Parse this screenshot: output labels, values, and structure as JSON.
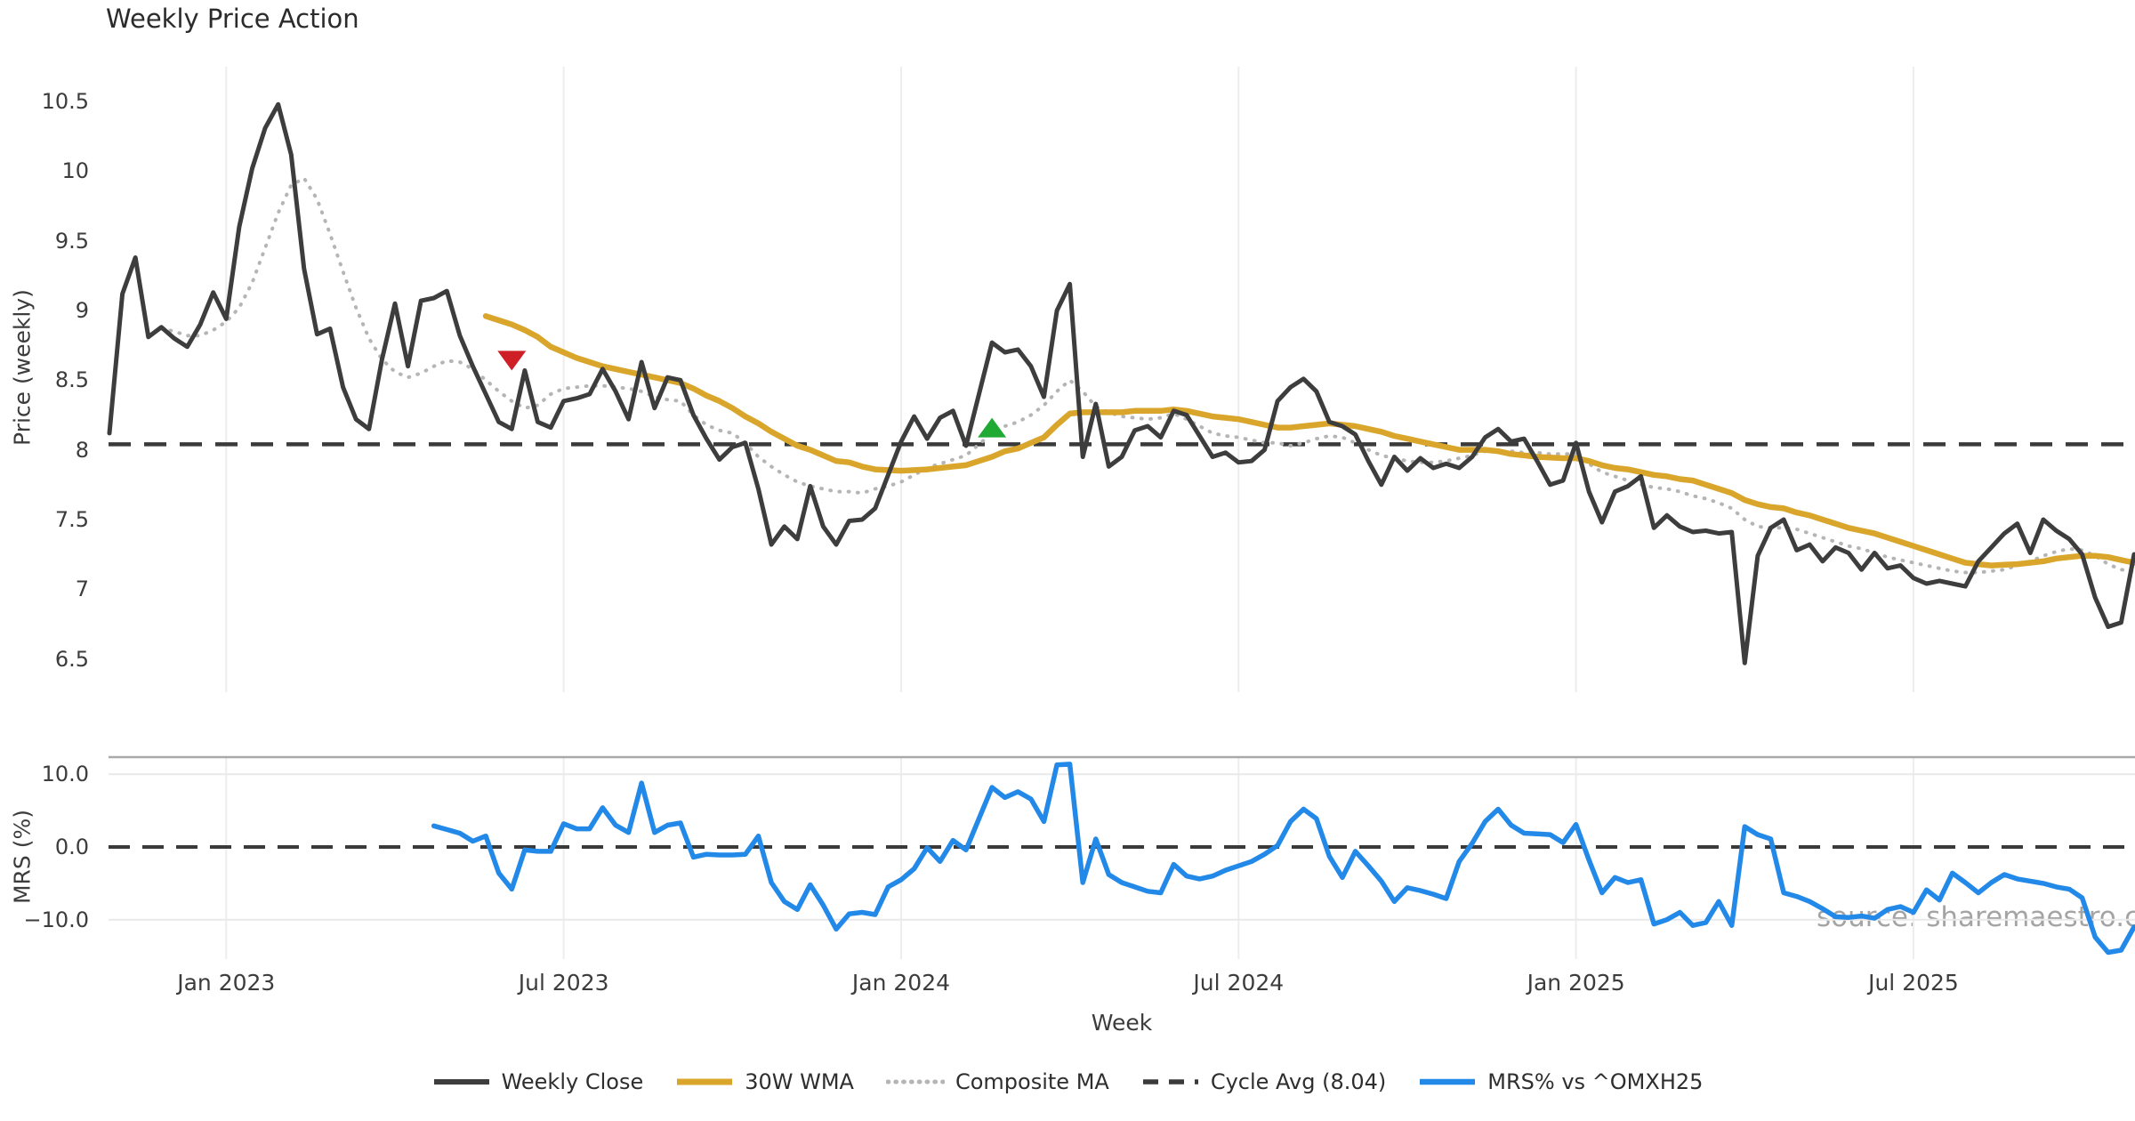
{
  "title": "Weekly Price Action",
  "watermark": "source: sharemaestro.com",
  "xlabel": "Week",
  "colors": {
    "close": "#3d3d3d",
    "wma": "#d9a62b",
    "composite": "#b5b5b5",
    "cycle": "#3a3a3a",
    "mrs": "#2389e8",
    "sell": "#cf1f26",
    "buy": "#1faa34",
    "grid": "#ededed",
    "hgrid": "#e9e9e9",
    "spine": "#a9a9a9",
    "text": "#3c3c3c",
    "title_text": "#2b2b2b",
    "watermark_text": "#9b9b9b"
  },
  "chart_data": {
    "type": "line",
    "x_unit": "week",
    "total_weeks": 157,
    "panels": [
      {
        "name": "price",
        "ylabel": "Price (weekly)",
        "ylim": [
          6.26,
          10.75
        ],
        "grid": "vertical-only",
        "yticks": [
          {
            "label": "10.5",
            "value": 10.5
          },
          {
            "label": "10",
            "value": 10
          },
          {
            "label": "9.5",
            "value": 9.5
          },
          {
            "label": "9",
            "value": 9
          },
          {
            "label": "8.5",
            "value": 8.5
          },
          {
            "label": "8",
            "value": 8
          },
          {
            "label": "7.5",
            "value": 7.5
          },
          {
            "label": "7",
            "value": 7
          },
          {
            "label": "6.5",
            "value": 6.5
          }
        ],
        "cycle_avg": 8.04
      },
      {
        "name": "mrs",
        "ylabel": "MRS (%)",
        "ylim": [
          -15.5,
          12.4
        ],
        "grid": "horizontal-and-vertical",
        "yticks": [
          {
            "label": "10.0",
            "value": 10
          },
          {
            "label": "0.0",
            "value": 0
          },
          {
            "label": "−10.0",
            "value": -10
          }
        ],
        "zero_line": 0
      }
    ],
    "xticks": [
      {
        "label": "Jan 2023",
        "week": 9
      },
      {
        "label": "Jul 2023",
        "week": 35
      },
      {
        "label": "Jan 2024",
        "week": 61
      },
      {
        "label": "Jul 2024",
        "week": 87
      },
      {
        "label": "Jan 2025",
        "week": 113
      },
      {
        "label": "Jul 2025",
        "week": 139
      }
    ],
    "series": [
      {
        "name": "Weekly Close",
        "panel": "price",
        "style": "solid",
        "width": 5,
        "color_key": "close",
        "start_week": 0,
        "values": [
          8.12,
          9.12,
          9.38,
          8.81,
          8.88,
          8.8,
          8.74,
          8.9,
          9.13,
          8.94,
          9.6,
          10.02,
          10.31,
          10.48,
          10.12,
          9.3,
          8.83,
          8.87,
          8.45,
          8.22,
          8.15,
          8.65,
          9.05,
          8.6,
          9.07,
          9.09,
          9.14,
          8.82,
          8.6,
          8.4,
          8.2,
          8.15,
          8.57,
          8.2,
          8.16,
          8.35,
          8.37,
          8.4,
          8.58,
          8.42,
          8.22,
          8.63,
          8.3,
          8.52,
          8.5,
          8.25,
          8.08,
          7.93,
          8.02,
          8.05,
          7.72,
          7.32,
          7.45,
          7.36,
          7.74,
          7.45,
          7.32,
          7.49,
          7.5,
          7.58,
          7.82,
          8.06,
          8.24,
          8.08,
          8.23,
          8.28,
          8.03,
          8.4,
          8.77,
          8.7,
          8.72,
          8.6,
          8.38,
          9.0,
          9.19,
          7.95,
          8.33,
          7.88,
          7.95,
          8.14,
          8.17,
          8.09,
          8.28,
          8.25,
          8.1,
          7.95,
          7.98,
          7.91,
          7.92,
          8.0,
          8.35,
          8.45,
          8.51,
          8.42,
          8.2,
          8.17,
          8.11,
          7.92,
          7.75,
          7.95,
          7.85,
          7.94,
          7.87,
          7.9,
          7.87,
          7.95,
          8.09,
          8.15,
          8.06,
          8.08,
          7.92,
          7.75,
          7.78,
          8.05,
          7.7,
          7.48,
          7.7,
          7.74,
          7.81,
          7.44,
          7.53,
          7.45,
          7.41,
          7.42,
          7.4,
          7.41,
          6.47,
          7.24,
          7.44,
          7.5,
          7.28,
          7.32,
          7.2,
          7.3,
          7.26,
          7.14,
          7.26,
          7.15,
          7.17,
          7.08,
          7.04,
          7.06,
          7.04,
          7.02,
          7.2,
          7.3,
          7.4,
          7.47,
          7.26,
          7.5,
          7.42,
          7.36,
          7.25,
          6.94,
          6.73,
          6.76,
          7.25
        ]
      },
      {
        "name": "30W WMA",
        "panel": "price",
        "style": "solid",
        "width": 6.5,
        "color_key": "wma",
        "start_week": 29,
        "values": [
          8.96,
          8.93,
          8.9,
          8.86,
          8.81,
          8.74,
          8.7,
          8.66,
          8.63,
          8.6,
          8.58,
          8.56,
          8.54,
          8.52,
          8.5,
          8.48,
          8.44,
          8.39,
          8.35,
          8.3,
          8.24,
          8.19,
          8.13,
          8.08,
          8.03,
          8.0,
          7.96,
          7.92,
          7.91,
          7.88,
          7.86,
          7.855,
          7.85,
          7.855,
          7.86,
          7.87,
          7.88,
          7.89,
          7.92,
          7.95,
          7.99,
          8.01,
          8.05,
          8.09,
          8.18,
          8.26,
          8.27,
          8.27,
          8.27,
          8.27,
          8.28,
          8.28,
          8.28,
          8.29,
          8.28,
          8.26,
          8.24,
          8.23,
          8.22,
          8.2,
          8.18,
          8.16,
          8.16,
          8.17,
          8.18,
          8.19,
          8.18,
          8.17,
          8.15,
          8.13,
          8.1,
          8.08,
          8.06,
          8.04,
          8.02,
          8.0,
          8.0,
          8.0,
          7.99,
          7.97,
          7.96,
          7.95,
          7.945,
          7.94,
          7.94,
          7.92,
          7.89,
          7.87,
          7.86,
          7.84,
          7.82,
          7.81,
          7.79,
          7.78,
          7.75,
          7.72,
          7.69,
          7.64,
          7.61,
          7.59,
          7.58,
          7.55,
          7.53,
          7.5,
          7.47,
          7.44,
          7.42,
          7.4,
          7.37,
          7.34,
          7.31,
          7.28,
          7.25,
          7.22,
          7.19,
          7.18,
          7.17,
          7.175,
          7.18,
          7.19,
          7.2,
          7.22,
          7.23,
          7.24,
          7.24,
          7.23,
          7.21,
          7.19,
          7.17
        ]
      },
      {
        "name": "Composite MA",
        "panel": "price",
        "style": "dotted",
        "width": 4,
        "color_key": "composite",
        "start_week": 4,
        "values": [
          8.87,
          8.85,
          8.82,
          8.82,
          8.86,
          8.92,
          9.02,
          9.2,
          9.45,
          9.7,
          9.9,
          9.95,
          9.8,
          9.55,
          9.28,
          9.02,
          8.8,
          8.65,
          8.56,
          8.52,
          8.55,
          8.6,
          8.64,
          8.63,
          8.58,
          8.5,
          8.42,
          8.35,
          8.3,
          8.32,
          8.4,
          8.44,
          8.45,
          8.46,
          8.46,
          8.45,
          8.44,
          8.42,
          8.38,
          8.36,
          8.35,
          8.25,
          8.18,
          8.14,
          8.12,
          8.05,
          7.95,
          7.88,
          7.82,
          7.77,
          7.74,
          7.72,
          7.7,
          7.7,
          7.69,
          7.72,
          7.74,
          7.77,
          7.82,
          7.87,
          7.9,
          7.93,
          7.96,
          8.04,
          8.12,
          8.17,
          8.2,
          8.25,
          8.32,
          8.42,
          8.5,
          8.42,
          8.31,
          8.27,
          8.24,
          8.23,
          8.22,
          8.23,
          8.26,
          8.22,
          8.17,
          8.12,
          8.1,
          8.09,
          8.07,
          8.05,
          8.05,
          8.03,
          8.05,
          8.08,
          8.1,
          8.09,
          8.05,
          8.0,
          7.96,
          7.94,
          7.92,
          7.91,
          7.91,
          7.92,
          7.94,
          7.96,
          7.99,
          7.99,
          7.99,
          7.98,
          7.98,
          7.97,
          7.97,
          7.97,
          7.9,
          7.84,
          7.81,
          7.78,
          7.75,
          7.73,
          7.72,
          7.7,
          7.67,
          7.65,
          7.62,
          7.58,
          7.5,
          7.45,
          7.44,
          7.44,
          7.43,
          7.4,
          7.37,
          7.34,
          7.31,
          7.29,
          7.26,
          7.23,
          7.21,
          7.19,
          7.17,
          7.15,
          7.13,
          7.12,
          7.12,
          7.13,
          7.14,
          7.17,
          7.2,
          7.24,
          7.27,
          7.29,
          7.28,
          7.24,
          7.18,
          7.14,
          7.13
        ]
      },
      {
        "name": "Cycle Avg (8.04)",
        "panel": "price",
        "style": "dashed",
        "width": 4.5,
        "color_key": "cycle",
        "value": 8.04
      },
      {
        "name": "MRS% vs ^OMXH25",
        "panel": "mrs",
        "style": "solid",
        "width": 5.5,
        "color_key": "mrs",
        "start_week": 25,
        "values": [
          2.9,
          2.4,
          1.9,
          0.8,
          1.5,
          -3.6,
          -5.8,
          -0.4,
          -0.6,
          -0.6,
          3.2,
          2.5,
          2.5,
          5.4,
          3.0,
          2.0,
          8.8,
          2.0,
          3.0,
          3.3,
          -1.4,
          -1.0,
          -1.1,
          -1.1,
          -1.0,
          1.5,
          -4.9,
          -7.5,
          -8.6,
          -5.2,
          -8.0,
          -11.3,
          -9.2,
          -9.0,
          -9.3,
          -5.5,
          -4.5,
          -3.0,
          -0.1,
          -2.0,
          0.9,
          -0.4,
          3.9,
          8.2,
          6.8,
          7.6,
          6.6,
          3.5,
          11.3,
          11.4,
          -4.9,
          1.1,
          -3.8,
          -4.9,
          -5.5,
          -6.1,
          -6.3,
          -2.4,
          -4.0,
          -4.4,
          -4.0,
          -3.2,
          -2.6,
          -2.0,
          -1.0,
          0.2,
          3.5,
          5.2,
          3.9,
          -1.3,
          -4.2,
          -0.6,
          -2.6,
          -4.7,
          -7.5,
          -5.6,
          -6.0,
          -6.5,
          -7.1,
          -2.0,
          0.5,
          3.5,
          5.2,
          3.0,
          1.9,
          1.8,
          1.7,
          0.6,
          3.1,
          -1.8,
          -6.3,
          -4.2,
          -4.9,
          -4.5,
          -10.6,
          -10.0,
          -9.0,
          -10.8,
          -10.4,
          -7.5,
          -10.8,
          2.8,
          1.7,
          1.1,
          -6.3,
          -6.8,
          -7.5,
          -8.5,
          -9.6,
          -9.7,
          -9.5,
          -9.8,
          -8.6,
          -8.2,
          -9.0,
          -5.9,
          -7.3,
          -3.6,
          -4.9,
          -6.3,
          -4.9,
          -3.8,
          -4.4,
          -4.7,
          -5.0,
          -5.5,
          -5.8,
          -7.0,
          -12.4,
          -14.5,
          -14.2,
          -11.0
        ]
      }
    ],
    "markers": [
      {
        "name": "sell-signal",
        "shape": "triangle-down",
        "week": 31,
        "price": 8.64,
        "color_key": "sell"
      },
      {
        "name": "buy-signal",
        "shape": "triangle-up",
        "week": 68,
        "price": 8.16,
        "color_key": "buy"
      }
    ]
  }
}
